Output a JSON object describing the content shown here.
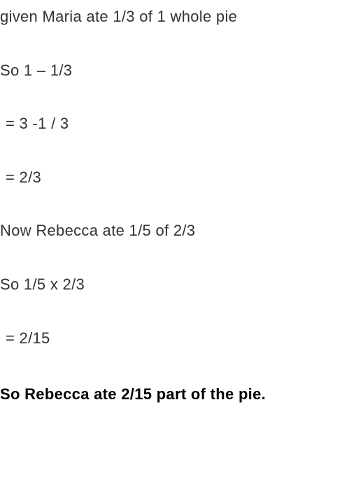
{
  "solution": {
    "line1": "given Maria ate 1/3 of 1 whole pie",
    "line2": "So 1 – 1/3",
    "line3": "= 3 -1 / 3",
    "line4": "= 2/3",
    "line5": "Now Rebecca ate 1/5 of 2/3",
    "line6": "So 1/5 x 2/3",
    "line7": "= 2/15",
    "line8": "So Rebecca ate 2/15 part of the pie."
  },
  "styling": {
    "background_color": "#ffffff",
    "text_color": "#333333",
    "bold_color": "#000000",
    "font_size": 22,
    "font_family": "Arial, Helvetica, sans-serif",
    "line_spacing": 48
  }
}
